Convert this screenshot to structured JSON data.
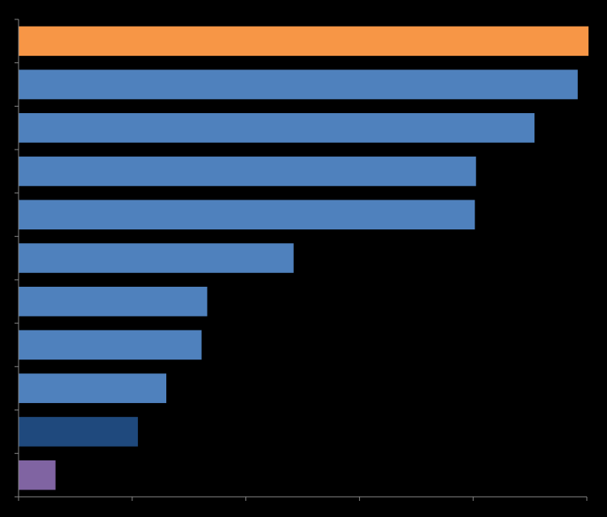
{
  "chart_data": {
    "type": "barh",
    "values": [
      100.3,
      98.4,
      90.8,
      80.5,
      80.3,
      48.4,
      33.2,
      32.2,
      26.0,
      21.0,
      6.5
    ],
    "colors": [
      "#f79646",
      "#4f81bd",
      "#4f81bd",
      "#4f81bd",
      "#4f81bd",
      "#4f81bd",
      "#4f81bd",
      "#4f81bd",
      "#4f81bd",
      "#1f497d",
      "#8064a2"
    ],
    "xlim": [
      0,
      100
    ],
    "xticks": [
      0,
      20,
      40,
      60,
      80,
      100
    ]
  }
}
